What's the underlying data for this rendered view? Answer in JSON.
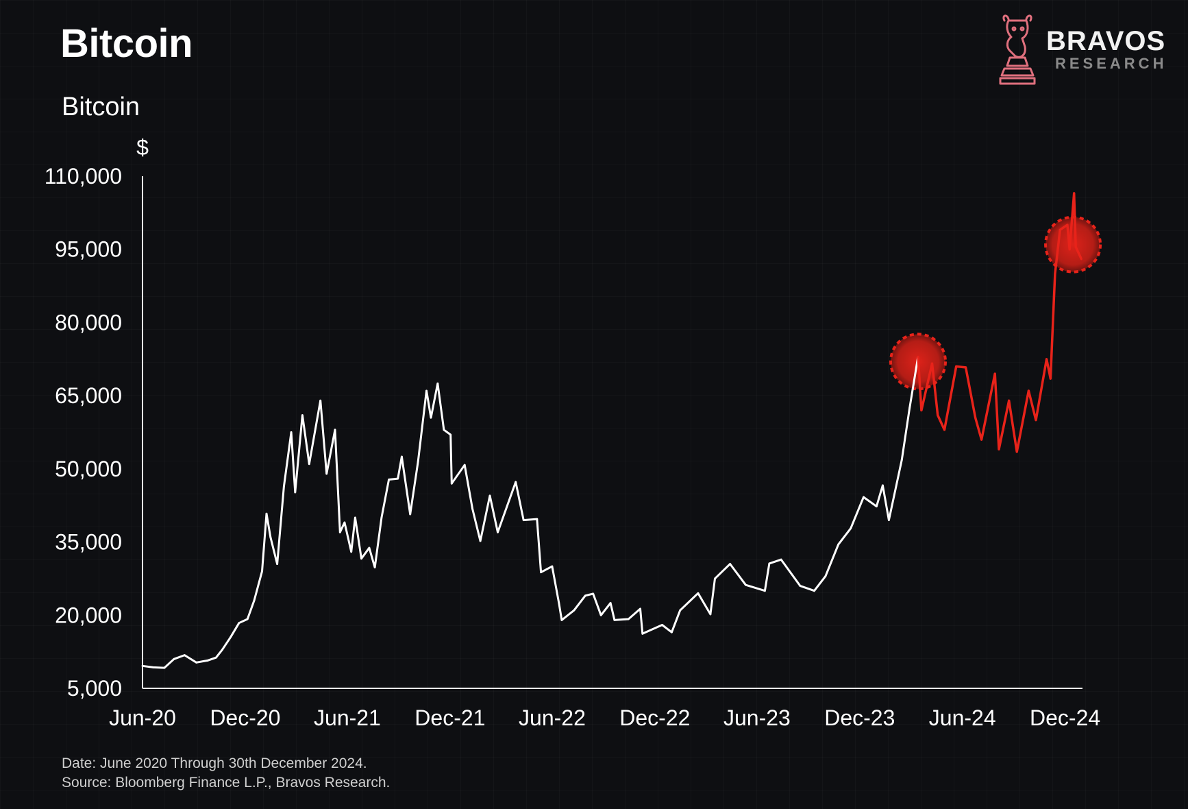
{
  "header": {
    "title": "Bitcoin"
  },
  "logo": {
    "name": "BRAVOS",
    "sub": "RESEARCH",
    "icon": "bull-knight-icon",
    "color": "#e0707e"
  },
  "footer": {
    "date_note": "Date: June 2020 Through 30th December 2024.",
    "source_note": "Source: Bloomberg Finance L.P., Bravos Research."
  },
  "colors": {
    "background": "#0e0f12",
    "line": "#ffffff",
    "highlight": "#e8231a"
  },
  "chart_data": {
    "type": "line",
    "title": "Bitcoin",
    "ylabel": "$",
    "xlabel": "",
    "ylim": [
      5000,
      110000
    ],
    "yticks": [
      5000,
      20000,
      35000,
      50000,
      65000,
      80000,
      95000,
      110000
    ],
    "ytick_labels": [
      "5,000",
      "20,000",
      "35,000",
      "50,000",
      "65,000",
      "80,000",
      "95,000",
      "110,000"
    ],
    "xlim": [
      "2020-06-01",
      "2025-01-01"
    ],
    "xticks": [
      "2020-06-01",
      "2020-12-01",
      "2021-06-01",
      "2021-12-01",
      "2022-06-01",
      "2022-12-01",
      "2023-06-01",
      "2023-12-01",
      "2024-06-01",
      "2024-12-01"
    ],
    "xtick_labels": [
      "Jun-20",
      "Dec-20",
      "Jun-21",
      "Dec-21",
      "Jun-22",
      "Dec-22",
      "Jun-23",
      "Dec-23",
      "Jun-24",
      "Dec-24"
    ],
    "grid": false,
    "legend": false,
    "highlight_from": "2024-03-14",
    "markers": [
      {
        "date": "2024-03-14",
        "value": 72000
      },
      {
        "date": "2024-12-15",
        "value": 96000
      }
    ],
    "series": [
      {
        "points": [
          [
            "2020-06-01",
            9600
          ],
          [
            "2020-06-20",
            9300
          ],
          [
            "2020-07-10",
            9200
          ],
          [
            "2020-07-27",
            11000
          ],
          [
            "2020-08-15",
            11800
          ],
          [
            "2020-09-05",
            10300
          ],
          [
            "2020-09-25",
            10700
          ],
          [
            "2020-10-10",
            11300
          ],
          [
            "2020-10-21",
            12900
          ],
          [
            "2020-11-05",
            15500
          ],
          [
            "2020-11-20",
            18400
          ],
          [
            "2020-12-05",
            19200
          ],
          [
            "2020-12-17",
            23000
          ],
          [
            "2020-12-31",
            29000
          ],
          [
            "2021-01-08",
            40800
          ],
          [
            "2021-01-15",
            36000
          ],
          [
            "2021-01-27",
            30500
          ],
          [
            "2021-02-08",
            46400
          ],
          [
            "2021-02-21",
            57500
          ],
          [
            "2021-02-28",
            45200
          ],
          [
            "2021-03-13",
            61000
          ],
          [
            "2021-03-25",
            51000
          ],
          [
            "2021-04-14",
            64000
          ],
          [
            "2021-04-25",
            49000
          ],
          [
            "2021-05-10",
            58000
          ],
          [
            "2021-05-19",
            37000
          ],
          [
            "2021-05-27",
            39000
          ],
          [
            "2021-06-08",
            33000
          ],
          [
            "2021-06-15",
            40000
          ],
          [
            "2021-06-26",
            31600
          ],
          [
            "2021-07-10",
            33800
          ],
          [
            "2021-07-20",
            29800
          ],
          [
            "2021-08-01",
            40000
          ],
          [
            "2021-08-14",
            47800
          ],
          [
            "2021-08-30",
            48000
          ],
          [
            "2021-09-06",
            52500
          ],
          [
            "2021-09-21",
            40700
          ],
          [
            "2021-10-05",
            51500
          ],
          [
            "2021-10-20",
            66000
          ],
          [
            "2021-10-28",
            60500
          ],
          [
            "2021-11-09",
            67500
          ],
          [
            "2021-11-20",
            58000
          ],
          [
            "2021-12-02",
            57000
          ],
          [
            "2021-12-04",
            47000
          ],
          [
            "2021-12-27",
            50800
          ],
          [
            "2022-01-10",
            41800
          ],
          [
            "2022-01-24",
            35200
          ],
          [
            "2022-02-10",
            44500
          ],
          [
            "2022-02-24",
            37000
          ],
          [
            "2022-03-28",
            47300
          ],
          [
            "2022-04-11",
            39500
          ],
          [
            "2022-05-05",
            39700
          ],
          [
            "2022-05-12",
            28800
          ],
          [
            "2022-06-01",
            30000
          ],
          [
            "2022-06-13",
            22500
          ],
          [
            "2022-06-18",
            19000
          ],
          [
            "2022-07-10",
            21000
          ],
          [
            "2022-07-30",
            24000
          ],
          [
            "2022-08-13",
            24400
          ],
          [
            "2022-08-27",
            20000
          ],
          [
            "2022-09-13",
            22500
          ],
          [
            "2022-09-20",
            19000
          ],
          [
            "2022-10-15",
            19200
          ],
          [
            "2022-11-05",
            21300
          ],
          [
            "2022-11-09",
            16200
          ],
          [
            "2022-12-14",
            18000
          ],
          [
            "2022-12-31",
            16500
          ],
          [
            "2023-01-15",
            21000
          ],
          [
            "2023-02-16",
            24500
          ],
          [
            "2023-03-10",
            20200
          ],
          [
            "2023-03-18",
            27500
          ],
          [
            "2023-04-14",
            30500
          ],
          [
            "2023-05-12",
            26200
          ],
          [
            "2023-06-15",
            25000
          ],
          [
            "2023-06-23",
            30600
          ],
          [
            "2023-07-14",
            31400
          ],
          [
            "2023-08-17",
            26000
          ],
          [
            "2023-09-11",
            25000
          ],
          [
            "2023-10-01",
            28000
          ],
          [
            "2023-10-24",
            34500
          ],
          [
            "2023-11-15",
            37800
          ],
          [
            "2023-12-08",
            44200
          ],
          [
            "2023-12-31",
            42300
          ],
          [
            "2024-01-11",
            46600
          ],
          [
            "2024-01-22",
            39500
          ],
          [
            "2024-02-14",
            51800
          ],
          [
            "2024-02-28",
            62500
          ],
          [
            "2024-03-14",
            73000
          ],
          [
            "2024-03-20",
            62000
          ],
          [
            "2024-04-08",
            71600
          ],
          [
            "2024-04-18",
            61000
          ],
          [
            "2024-04-30",
            58000
          ],
          [
            "2024-05-21",
            71000
          ],
          [
            "2024-06-07",
            70800
          ],
          [
            "2024-06-24",
            60500
          ],
          [
            "2024-07-05",
            56000
          ],
          [
            "2024-07-29",
            69500
          ],
          [
            "2024-08-05",
            54000
          ],
          [
            "2024-08-23",
            64000
          ],
          [
            "2024-09-06",
            53500
          ],
          [
            "2024-09-27",
            66000
          ],
          [
            "2024-10-10",
            60000
          ],
          [
            "2024-10-29",
            72500
          ],
          [
            "2024-11-05",
            68500
          ],
          [
            "2024-11-13",
            90000
          ],
          [
            "2024-11-22",
            99000
          ],
          [
            "2024-12-05",
            100000
          ],
          [
            "2024-12-09",
            95000
          ],
          [
            "2024-12-17",
            106500
          ],
          [
            "2024-12-20",
            95500
          ],
          [
            "2024-12-30",
            93000
          ]
        ]
      }
    ]
  }
}
